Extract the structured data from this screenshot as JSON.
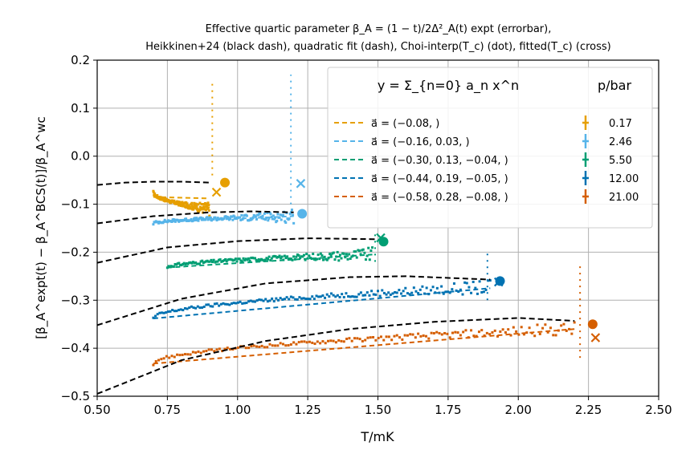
{
  "chart_data": {
    "type": "scatter",
    "title_lines": [
      "Effective quartic parameter β_A = (1 − t)/2Δ²_A(t) expt (errorbar),",
      "Heikkinen+24 (black dash), quadratic fit (dash), Choi-interp(T_c) (dot), fitted(T_c) (cross)"
    ],
    "xlabel": "T/mK",
    "ylabel": "[β_A^expt(t) − β_A^BCS(t)]/β_A^wc",
    "xlim": [
      0.5,
      2.5
    ],
    "ylim": [
      -0.5,
      0.2
    ],
    "x_ticks": [
      0.5,
      0.75,
      1.0,
      1.25,
      1.5,
      1.75,
      2.0,
      2.25,
      2.5
    ],
    "x_tick_labels": [
      "0.50",
      "0.75",
      "1.00",
      "1.25",
      "1.50",
      "1.75",
      "2.00",
      "2.25",
      "2.50"
    ],
    "y_ticks": [
      -0.5,
      -0.4,
      -0.3,
      -0.2,
      -0.1,
      0.0,
      0.1,
      0.2
    ],
    "y_tick_labels": [
      "−0.5",
      "−0.4",
      "−0.3",
      "−0.2",
      "−0.1",
      "0.0",
      "0.1",
      "0.2"
    ],
    "grid": true,
    "legend_placement": "top-right",
    "legend_formula": "y = Σ_{n=0} a_n x^n",
    "legend_pressure_header": "p/bar",
    "series": [
      {
        "pressure": "0.17",
        "color": "#e69f00",
        "fit_label": "a⃗ = (−0.08, )",
        "expt": {
          "x_range": [
            0.7,
            0.9
          ],
          "y_start": -0.075,
          "y_end": -0.11
        },
        "fit_line": [
          [
            0.7,
            -0.085
          ],
          [
            0.9,
            -0.088
          ]
        ],
        "heikkinen": [
          [
            0.5,
            -0.06
          ],
          [
            0.6,
            -0.055
          ],
          [
            0.7,
            -0.053
          ],
          [
            0.8,
            -0.053
          ],
          [
            0.9,
            -0.055
          ]
        ],
        "choi_tc": [
          0.955,
          -0.055
        ],
        "fitted_tc": [
          0.925,
          -0.075
        ],
        "dot_x": 0.91,
        "dot_y_range": [
          -0.04,
          0.16
        ]
      },
      {
        "pressure": "2.46",
        "color": "#56b4e9",
        "fit_label": "a⃗ = (−0.16, 0.03, )",
        "expt": {
          "x_range": [
            0.7,
            1.2
          ],
          "y_start": -0.14,
          "y_end": -0.125
        },
        "fit_line": [
          [
            0.7,
            -0.138
          ],
          [
            1.2,
            -0.125
          ]
        ],
        "heikkinen": [
          [
            0.5,
            -0.14
          ],
          [
            0.7,
            -0.125
          ],
          [
            0.9,
            -0.117
          ],
          [
            1.05,
            -0.115
          ],
          [
            1.2,
            -0.117
          ]
        ],
        "choi_tc": [
          1.23,
          -0.12
        ],
        "fitted_tc": [
          1.225,
          -0.057
        ],
        "dot_x": 1.19,
        "dot_y_range": [
          -0.1,
          0.17
        ]
      },
      {
        "pressure": "5.50",
        "color": "#009e73",
        "fit_label": "a⃗ = (−0.30, 0.13, −0.04, )",
        "expt": {
          "x_range": [
            0.75,
            1.48
          ],
          "y_start": -0.232,
          "y_end": -0.205
        },
        "fit_line": [
          [
            0.75,
            -0.232
          ],
          [
            1.48,
            -0.205
          ]
        ],
        "heikkinen": [
          [
            0.5,
            -0.222
          ],
          [
            0.75,
            -0.19
          ],
          [
            1.0,
            -0.177
          ],
          [
            1.25,
            -0.171
          ],
          [
            1.5,
            -0.173
          ]
        ],
        "choi_tc": [
          1.52,
          -0.178
        ],
        "fitted_tc": [
          1.51,
          -0.17
        ],
        "dot_x": 1.49,
        "dot_y_range": [
          -0.22,
          -0.16
        ]
      },
      {
        "pressure": "12.00",
        "color": "#0072b2",
        "fit_label": "a⃗ = (−0.44, 0.19, −0.05, )",
        "expt": {
          "x_range": [
            0.7,
            1.9
          ],
          "y_start": -0.338,
          "y_end": -0.273
        },
        "fit_line": [
          [
            0.7,
            -0.338
          ],
          [
            1.9,
            -0.275
          ]
        ],
        "heikkinen": [
          [
            0.5,
            -0.352
          ],
          [
            0.8,
            -0.297
          ],
          [
            1.1,
            -0.265
          ],
          [
            1.4,
            -0.252
          ],
          [
            1.6,
            -0.25
          ],
          [
            1.9,
            -0.257
          ]
        ],
        "choi_tc": [
          1.935,
          -0.26
        ],
        "fitted_tc": [
          1.93,
          -0.262
        ],
        "dot_x": 1.89,
        "dot_y_range": [
          -0.3,
          -0.2
        ]
      },
      {
        "pressure": "21.00",
        "color": "#d55e00",
        "fit_label": "a⃗ = (−0.58, 0.28, −0.08, )",
        "expt": {
          "x_range": [
            0.7,
            2.2
          ],
          "y_start": -0.432,
          "y_end": -0.36
        },
        "fit_line": [
          [
            0.7,
            -0.432
          ],
          [
            2.2,
            -0.36
          ]
        ],
        "heikkinen": [
          [
            0.5,
            -0.495
          ],
          [
            0.8,
            -0.425
          ],
          [
            1.1,
            -0.385
          ],
          [
            1.4,
            -0.36
          ],
          [
            1.7,
            -0.345
          ],
          [
            2.0,
            -0.337
          ],
          [
            2.2,
            -0.343
          ]
        ],
        "choi_tc": [
          2.265,
          -0.35
        ],
        "fitted_tc": [
          2.275,
          -0.378
        ],
        "dot_x": 2.22,
        "dot_y_range": [
          -0.42,
          -0.22
        ]
      }
    ]
  }
}
